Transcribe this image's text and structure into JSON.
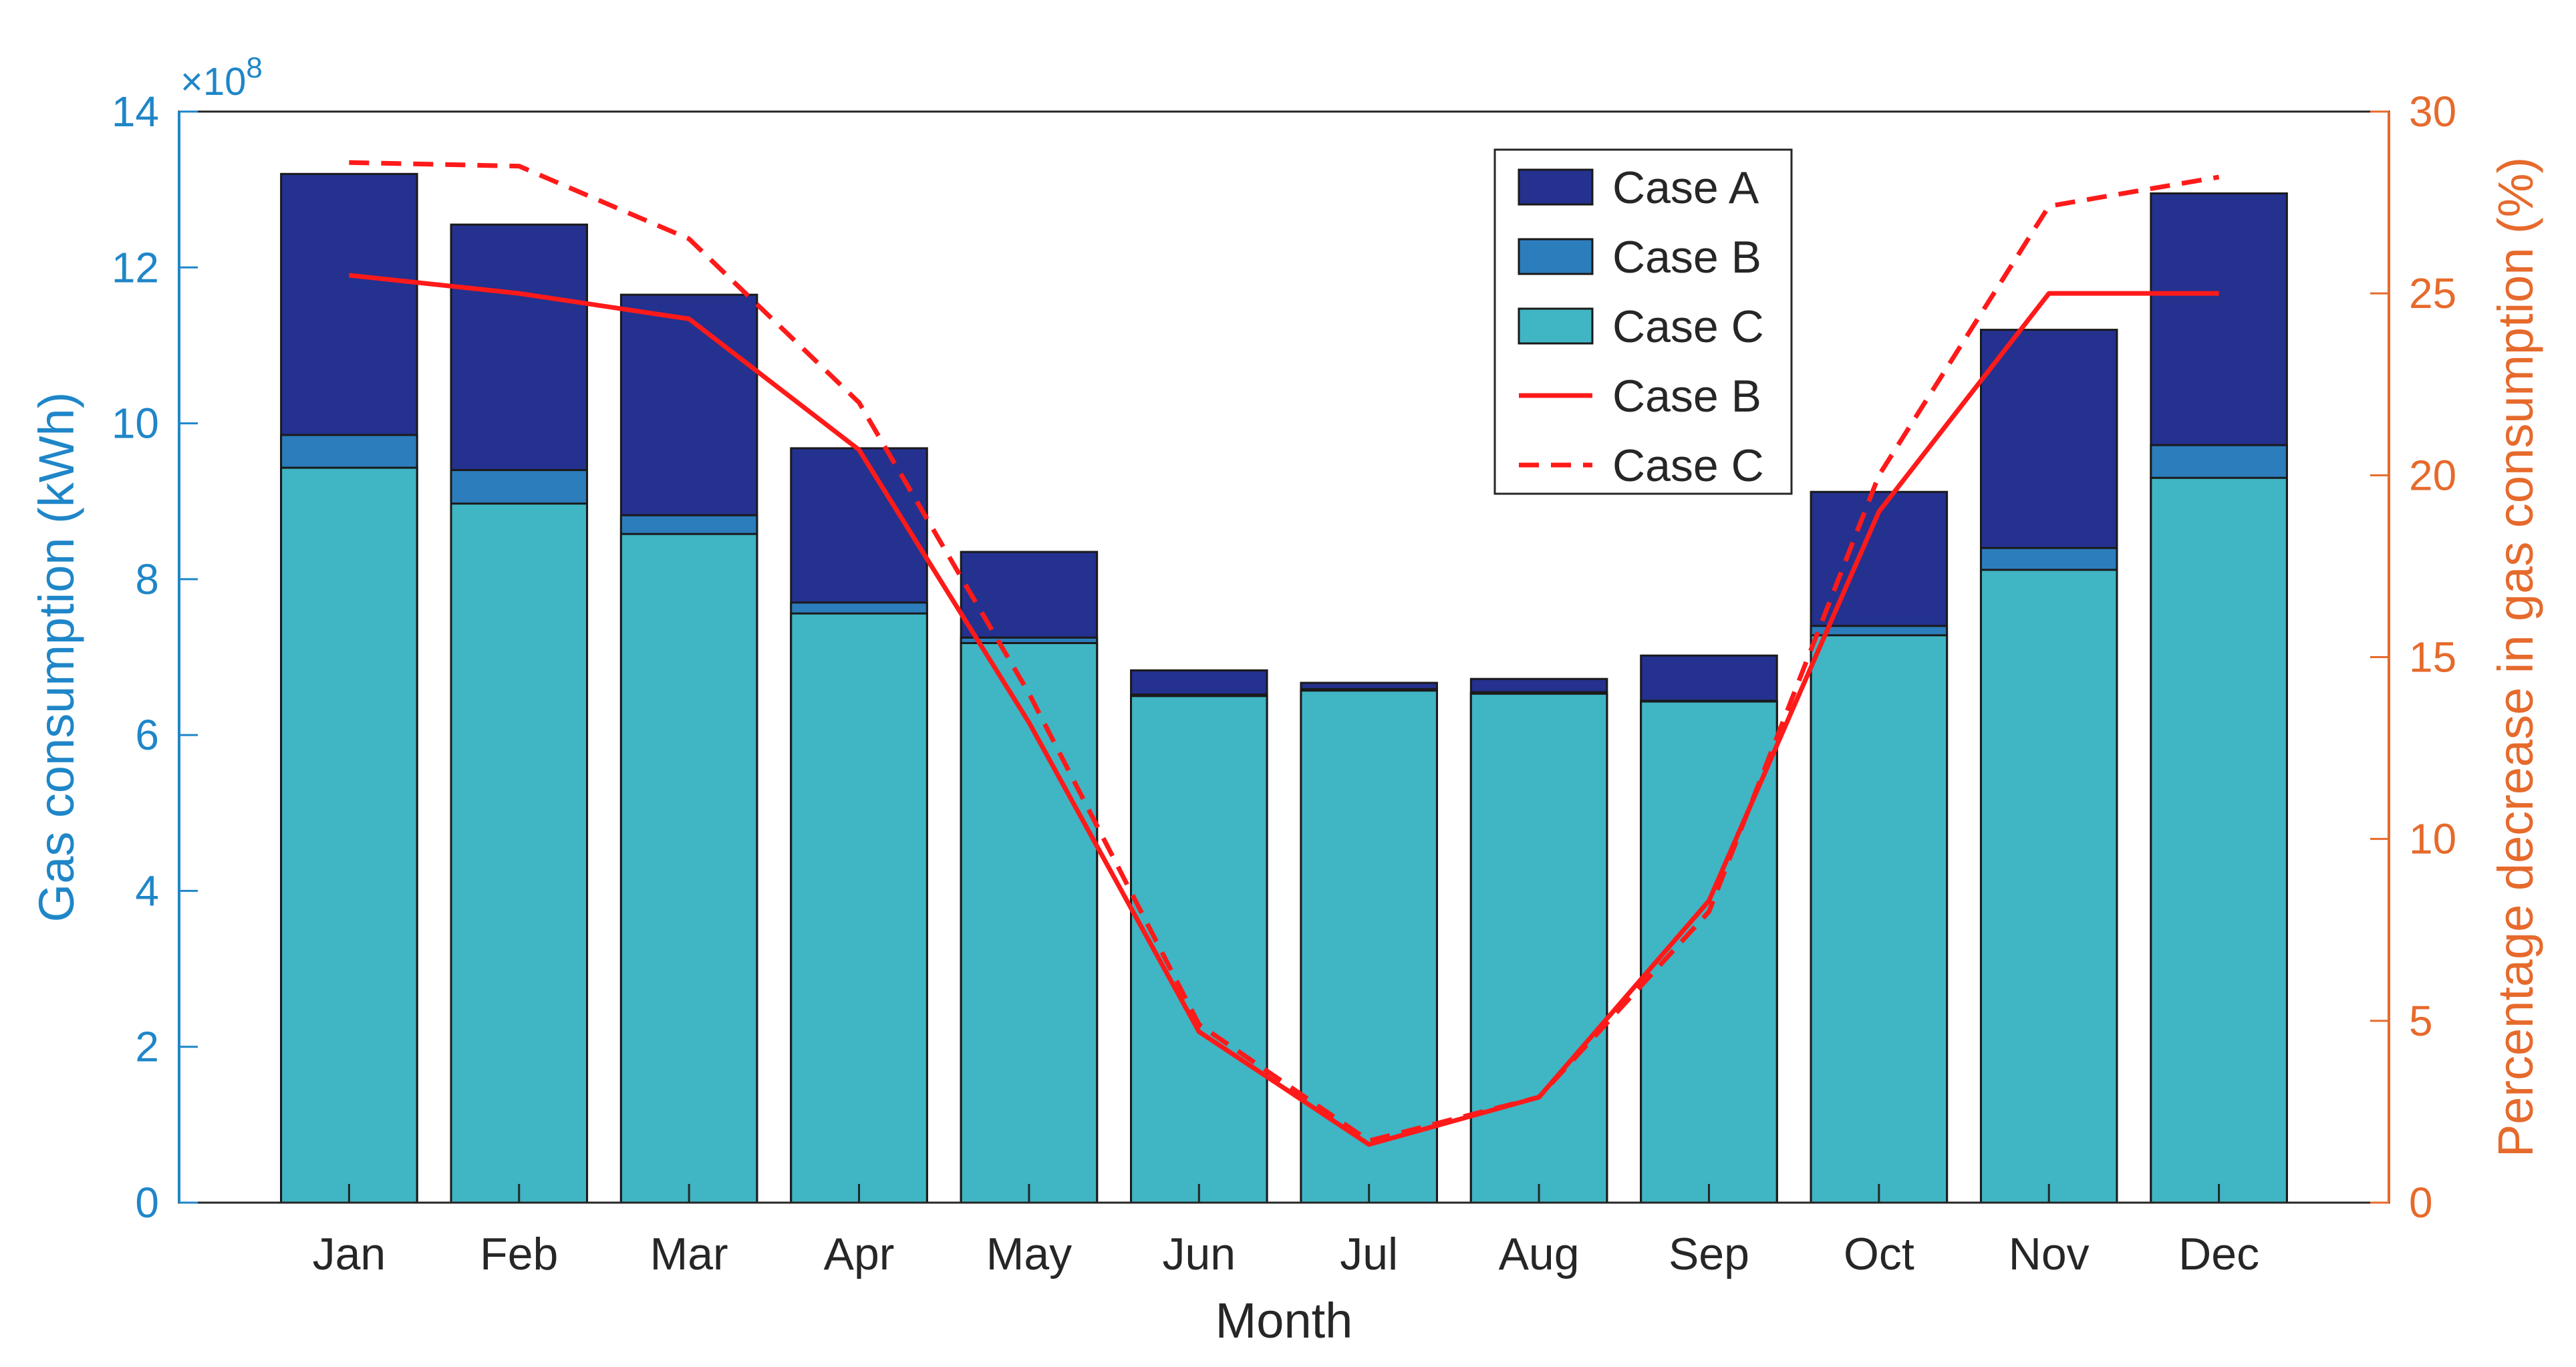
{
  "chart_data": {
    "type": "bar",
    "stacked": "overlaid",
    "categories": [
      "Jan",
      "Feb",
      "Mar",
      "Apr",
      "May",
      "Jun",
      "Jul",
      "Aug",
      "Sep",
      "Oct",
      "Nov",
      "Dec"
    ],
    "xlabel": "Month",
    "ylabel": "Gas consumption (kWh)",
    "ylabel_right": "Percentage decrease in gas consumption (%)",
    "y_exponent_label": "×10",
    "y_exponent_power": "8",
    "ylim": [
      0,
      14
    ],
    "yticks": [
      "0",
      "2",
      "4",
      "6",
      "8",
      "10",
      "12",
      "14"
    ],
    "ylim_right": [
      0,
      30
    ],
    "yticks_right": [
      "0",
      "5",
      "10",
      "15",
      "20",
      "25",
      "30"
    ],
    "legend_position": "top-center",
    "grid": false,
    "bar_series": [
      {
        "name": "Case A",
        "color": "#24318E",
        "values": [
          13.2,
          12.55,
          11.65,
          9.68,
          8.35,
          6.83,
          6.67,
          6.72,
          7.02,
          9.12,
          11.2,
          12.95
        ]
      },
      {
        "name": "Case B",
        "color": "#2C7DBC",
        "values": [
          9.85,
          9.4,
          8.82,
          7.7,
          7.25,
          6.52,
          6.59,
          6.55,
          6.44,
          7.4,
          8.4,
          9.72
        ]
      },
      {
        "name": "Case C",
        "color": "#40B5C4",
        "values": [
          9.43,
          8.97,
          8.58,
          7.56,
          7.18,
          6.5,
          6.57,
          6.53,
          6.43,
          7.28,
          8.12,
          9.3
        ]
      }
    ],
    "line_series": [
      {
        "name": "Case B",
        "color": "#FF1A1A",
        "dash": "solid",
        "axis": "right",
        "values": [
          25.5,
          25.0,
          24.3,
          20.7,
          13.2,
          4.7,
          1.6,
          2.9,
          8.3,
          19.0,
          25.0,
          25.0
        ]
      },
      {
        "name": "Case C",
        "color": "#FF1A1A",
        "dash": "dashed",
        "axis": "right",
        "values": [
          28.6,
          28.5,
          26.5,
          22.0,
          14.0,
          4.9,
          1.7,
          2.9,
          8.0,
          20.0,
          27.4,
          28.2
        ]
      }
    ],
    "colors": {
      "left_axis": "#1F86C8",
      "right_axis": "#E66A2C",
      "text": "#262626"
    }
  }
}
